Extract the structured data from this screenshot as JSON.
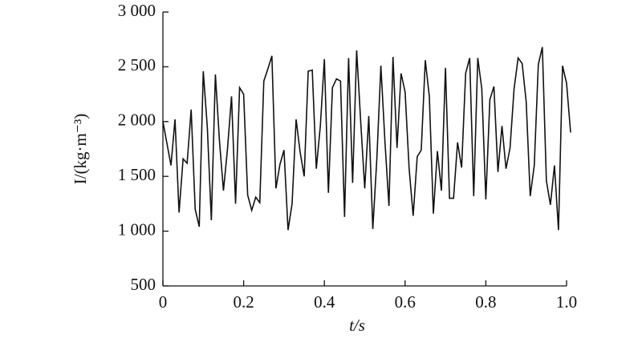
{
  "chart_data": {
    "type": "line",
    "xlabel": "t/s",
    "ylabel": "I/(kg·m⁻³)",
    "xlim": [
      0,
      1.0
    ],
    "ylim": [
      500,
      3000
    ],
    "xticks": [
      0,
      0.2,
      0.4,
      0.6,
      0.8,
      {
        "value": 1.0,
        "label": "1.0"
      }
    ],
    "yticks": [
      {
        "value": 3000,
        "label": "3 000"
      },
      {
        "value": 2500,
        "label": "2 500"
      },
      {
        "value": 2000,
        "label": "2 000"
      },
      {
        "value": 1500,
        "label": "1 500"
      },
      {
        "value": 1000,
        "label": "1 000"
      },
      500
    ],
    "color": "#111111",
    "x": [
      0,
      0.01,
      0.02,
      0.03,
      0.04,
      0.05,
      0.06,
      0.07,
      0.08,
      0.09,
      0.1,
      0.11,
      0.12,
      0.13,
      0.14,
      0.15,
      0.16,
      0.17,
      0.18,
      0.19,
      0.2,
      0.21,
      0.22,
      0.23,
      0.24,
      0.25,
      0.26,
      0.27,
      0.28,
      0.29,
      0.3,
      0.31,
      0.32,
      0.33,
      0.34,
      0.35,
      0.36,
      0.37,
      0.38,
      0.39,
      0.4,
      0.41,
      0.42,
      0.43,
      0.44,
      0.45,
      0.46,
      0.47,
      0.48,
      0.49,
      0.5,
      0.51,
      0.52,
      0.53,
      0.54,
      0.55,
      0.56,
      0.57,
      0.58,
      0.59,
      0.6,
      0.61,
      0.62,
      0.63,
      0.64,
      0.65,
      0.66,
      0.67,
      0.68,
      0.69,
      0.7,
      0.71,
      0.72,
      0.73,
      0.74,
      0.75,
      0.76,
      0.77,
      0.78,
      0.79,
      0.8,
      0.81,
      0.82,
      0.83,
      0.84,
      0.85,
      0.86,
      0.87,
      0.88,
      0.89,
      0.9,
      0.91,
      0.92,
      0.93,
      0.94,
      0.95,
      0.96,
      0.97,
      0.98,
      0.99,
      1.0,
      1.01
    ],
    "values": [
      2000,
      1800,
      1600,
      2020,
      1170,
      1660,
      1620,
      2110,
      1200,
      1040,
      2460,
      1950,
      1100,
      2430,
      1830,
      1370,
      1750,
      2230,
      1250,
      2310,
      2250,
      1330,
      1190,
      1310,
      1260,
      2370,
      2480,
      2600,
      1390,
      1610,
      1740,
      1010,
      1250,
      2020,
      1720,
      1500,
      2460,
      2470,
      1570,
      1960,
      2570,
      1350,
      2310,
      2390,
      2370,
      1130,
      2580,
      1440,
      2650,
      2000,
      1390,
      2050,
      1020,
      1660,
      2510,
      1820,
      1230,
      2590,
      1760,
      2440,
      2270,
      1570,
      1140,
      1680,
      1740,
      2560,
      2230,
      1160,
      1730,
      1370,
      2490,
      1300,
      1300,
      1810,
      1580,
      2440,
      2580,
      1320,
      2580,
      2300,
      1290,
      2200,
      2320,
      1540,
      1960,
      1570,
      1760,
      2300,
      2580,
      2530,
      2180,
      1320,
      1600,
      2520,
      2680,
      1460,
      1240,
      1600,
      1010,
      2510,
      2350,
      1900
    ]
  }
}
